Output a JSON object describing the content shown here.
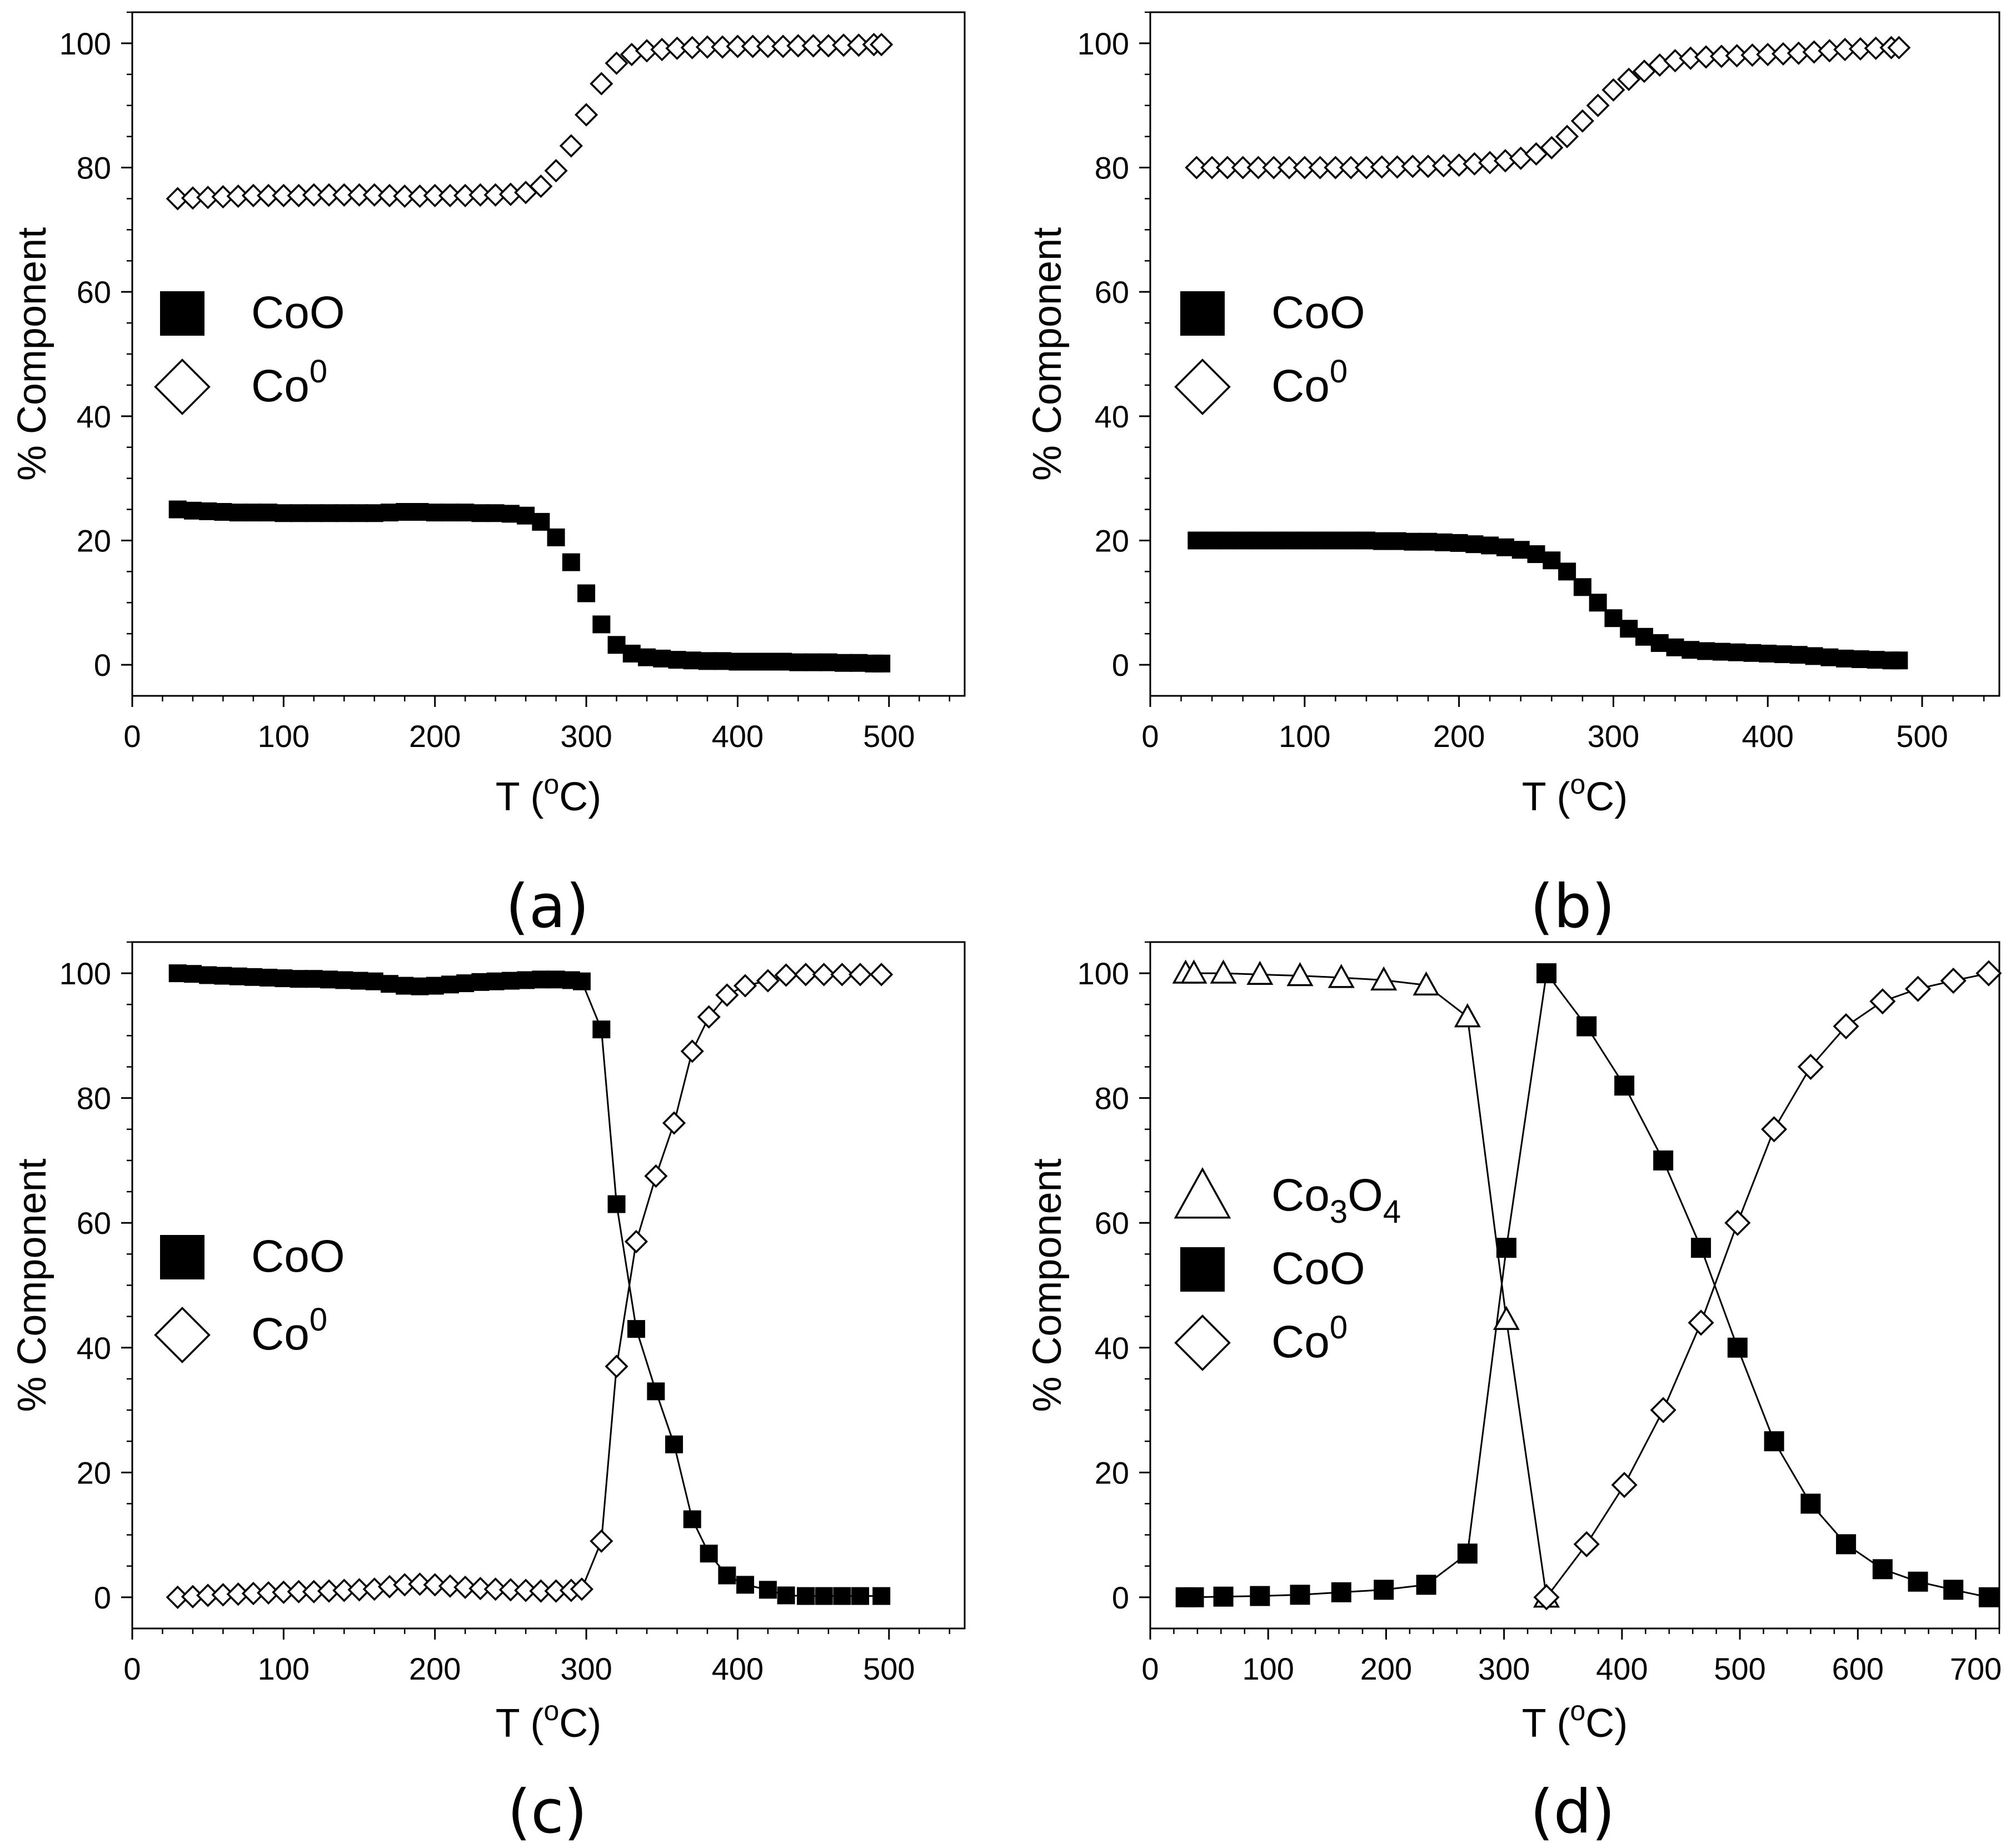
{
  "chart_data": [
    {
      "id": "a",
      "type": "scatter",
      "caption": "(a)",
      "xlabel": "T (°C)",
      "xlabel_parts": {
        "pre": "T (",
        "sup": "o",
        "post": "C)"
      },
      "ylabel": "% Component",
      "xlim": [
        0,
        550
      ],
      "ylim": [
        -5,
        105
      ],
      "xticks": [
        0,
        100,
        200,
        300,
        400,
        500
      ],
      "yticks": [
        0,
        20,
        40,
        60,
        80,
        100
      ],
      "legend": [
        "CoO",
        "Co0"
      ],
      "series": [
        {
          "name": "CoO",
          "marker": "square-filled",
          "line": false,
          "x": [
            30,
            40,
            50,
            60,
            70,
            80,
            90,
            100,
            110,
            120,
            130,
            140,
            150,
            160,
            170,
            180,
            190,
            200,
            210,
            220,
            230,
            240,
            250,
            260,
            270,
            280,
            290,
            300,
            310,
            320,
            330,
            340,
            350,
            360,
            370,
            380,
            390,
            400,
            410,
            420,
            430,
            440,
            450,
            460,
            470,
            480,
            490,
            495
          ],
          "y": [
            25,
            24.8,
            24.7,
            24.6,
            24.5,
            24.5,
            24.5,
            24.4,
            24.4,
            24.4,
            24.4,
            24.4,
            24.4,
            24.4,
            24.5,
            24.6,
            24.6,
            24.5,
            24.5,
            24.5,
            24.4,
            24.4,
            24.3,
            24.0,
            23.0,
            20.5,
            16.5,
            11.5,
            6.5,
            3.2,
            1.8,
            1.2,
            1.0,
            0.8,
            0.7,
            0.6,
            0.6,
            0.5,
            0.5,
            0.5,
            0.5,
            0.4,
            0.4,
            0.4,
            0.3,
            0.3,
            0.2,
            0.2
          ]
        },
        {
          "name": "Co0",
          "marker": "diamond-open",
          "line": false,
          "x": [
            30,
            40,
            50,
            60,
            70,
            80,
            90,
            100,
            110,
            120,
            130,
            140,
            150,
            160,
            170,
            180,
            190,
            200,
            210,
            220,
            230,
            240,
            250,
            260,
            270,
            280,
            290,
            300,
            310,
            320,
            330,
            340,
            350,
            360,
            370,
            380,
            390,
            400,
            410,
            420,
            430,
            440,
            450,
            460,
            470,
            480,
            490,
            495
          ],
          "y": [
            75,
            75.1,
            75.2,
            75.3,
            75.4,
            75.5,
            75.5,
            75.5,
            75.5,
            75.6,
            75.6,
            75.6,
            75.6,
            75.6,
            75.5,
            75.4,
            75.4,
            75.5,
            75.5,
            75.5,
            75.6,
            75.6,
            75.7,
            76.0,
            77.0,
            79.5,
            83.5,
            88.5,
            93.5,
            96.8,
            98.2,
            98.8,
            99.0,
            99.2,
            99.3,
            99.4,
            99.4,
            99.5,
            99.5,
            99.5,
            99.5,
            99.6,
            99.6,
            99.6,
            99.7,
            99.7,
            99.8,
            99.8
          ]
        }
      ]
    },
    {
      "id": "b",
      "type": "scatter",
      "caption": "(b)",
      "xlabel": "T (°C)",
      "xlabel_parts": {
        "pre": "T (",
        "sup": "o",
        "post": "C)"
      },
      "ylabel": "% Component",
      "xlim": [
        0,
        550
      ],
      "ylim": [
        -5,
        105
      ],
      "xticks": [
        0,
        100,
        200,
        300,
        400,
        500
      ],
      "yticks": [
        0,
        20,
        40,
        60,
        80,
        100
      ],
      "legend": [
        "CoO",
        "Co0"
      ],
      "series": [
        {
          "name": "CoO",
          "marker": "square-filled",
          "line": false,
          "x": [
            30,
            40,
            50,
            60,
            70,
            80,
            90,
            100,
            110,
            120,
            130,
            140,
            150,
            160,
            170,
            180,
            190,
            200,
            210,
            220,
            230,
            240,
            250,
            260,
            270,
            280,
            290,
            300,
            310,
            320,
            330,
            340,
            350,
            360,
            370,
            380,
            390,
            400,
            410,
            420,
            430,
            440,
            450,
            460,
            470,
            480,
            485
          ],
          "y": [
            20,
            20,
            20,
            20,
            20,
            20,
            20,
            20,
            20,
            20,
            20,
            20,
            19.9,
            19.9,
            19.8,
            19.8,
            19.7,
            19.6,
            19.4,
            19.2,
            18.9,
            18.5,
            17.8,
            16.8,
            15.0,
            12.5,
            10.0,
            7.5,
            5.8,
            4.5,
            3.5,
            2.8,
            2.4,
            2.2,
            2.1,
            2.0,
            1.9,
            1.8,
            1.7,
            1.6,
            1.4,
            1.2,
            1.0,
            0.9,
            0.8,
            0.7,
            0.7
          ]
        },
        {
          "name": "Co0",
          "marker": "diamond-open",
          "line": false,
          "x": [
            30,
            40,
            50,
            60,
            70,
            80,
            90,
            100,
            110,
            120,
            130,
            140,
            150,
            160,
            170,
            180,
            190,
            200,
            210,
            220,
            230,
            240,
            250,
            260,
            270,
            280,
            290,
            300,
            310,
            320,
            330,
            340,
            350,
            360,
            370,
            380,
            390,
            400,
            410,
            420,
            430,
            440,
            450,
            460,
            470,
            480,
            485
          ],
          "y": [
            80,
            80,
            80,
            80,
            80,
            80,
            80,
            80,
            80,
            80,
            80,
            80,
            80.1,
            80.1,
            80.2,
            80.2,
            80.3,
            80.4,
            80.6,
            80.8,
            81.1,
            81.5,
            82.2,
            83.2,
            85.0,
            87.5,
            90.0,
            92.5,
            94.2,
            95.5,
            96.5,
            97.2,
            97.6,
            97.8,
            97.9,
            98.0,
            98.1,
            98.2,
            98.3,
            98.4,
            98.6,
            98.8,
            99.0,
            99.1,
            99.2,
            99.3,
            99.3
          ]
        }
      ]
    },
    {
      "id": "c",
      "type": "line",
      "caption": "(c)",
      "xlabel": "T (°C)",
      "xlabel_parts": {
        "pre": "T (",
        "sup": "o",
        "post": "C)"
      },
      "ylabel": "% Component",
      "xlim": [
        0,
        550
      ],
      "ylim": [
        -5,
        105
      ],
      "xticks": [
        0,
        100,
        200,
        300,
        400,
        500
      ],
      "yticks": [
        0,
        20,
        40,
        60,
        80,
        100
      ],
      "legend": [
        "CoO",
        "Co0"
      ],
      "series": [
        {
          "name": "CoO",
          "marker": "square-filled",
          "line": true,
          "x": [
            30,
            40,
            50,
            60,
            70,
            80,
            90,
            100,
            110,
            120,
            130,
            140,
            150,
            160,
            170,
            180,
            190,
            200,
            210,
            220,
            230,
            240,
            250,
            260,
            270,
            280,
            290,
            297,
            310,
            320,
            333,
            346,
            358,
            370,
            381,
            393,
            405,
            420,
            432,
            445,
            457,
            469,
            481,
            495
          ],
          "y": [
            100,
            99.9,
            99.7,
            99.6,
            99.5,
            99.4,
            99.3,
            99.2,
            99.1,
            99.1,
            99.0,
            98.9,
            98.8,
            98.7,
            98.3,
            98.0,
            97.9,
            98.0,
            98.2,
            98.4,
            98.6,
            98.7,
            98.8,
            98.9,
            99.0,
            99.0,
            98.9,
            98.7,
            91,
            63,
            43,
            33,
            24.5,
            12.5,
            7,
            3.5,
            2,
            1.2,
            0.3,
            0.2,
            0.2,
            0.2,
            0.2,
            0.2
          ]
        },
        {
          "name": "Co0",
          "marker": "diamond-open",
          "line": true,
          "x": [
            30,
            40,
            50,
            60,
            70,
            80,
            90,
            100,
            110,
            120,
            130,
            140,
            150,
            160,
            170,
            180,
            190,
            200,
            210,
            220,
            230,
            240,
            250,
            260,
            270,
            280,
            290,
            297,
            310,
            320,
            333,
            346,
            358,
            370,
            381,
            393,
            405,
            420,
            432,
            445,
            457,
            469,
            481,
            495
          ],
          "y": [
            0,
            0.1,
            0.3,
            0.4,
            0.5,
            0.6,
            0.7,
            0.8,
            0.9,
            0.9,
            1.0,
            1.1,
            1.2,
            1.3,
            1.7,
            2.0,
            2.1,
            2.0,
            1.8,
            1.6,
            1.4,
            1.3,
            1.2,
            1.1,
            1.0,
            1.0,
            1.1,
            1.3,
            9,
            37,
            57,
            67.5,
            76,
            87.5,
            93,
            96.5,
            98,
            98.8,
            99.7,
            99.8,
            99.8,
            99.8,
            99.8,
            99.8
          ]
        }
      ]
    },
    {
      "id": "d",
      "type": "line",
      "caption": "(d)",
      "xlabel": "T (°C)",
      "xlabel_parts": {
        "pre": "T (",
        "sup": "o",
        "post": "C)"
      },
      "ylabel": "% Component",
      "xlim": [
        0,
        720
      ],
      "ylim": [
        -5,
        105
      ],
      "xticks": [
        0,
        100,
        200,
        300,
        400,
        500,
        600,
        700
      ],
      "yticks": [
        0,
        20,
        40,
        60,
        80,
        100
      ],
      "legend": [
        "Co3O4",
        "CoO",
        "Co0"
      ],
      "series": [
        {
          "name": "Co3O4",
          "marker": "triangle-open",
          "line": true,
          "x": [
            30,
            37,
            62,
            93,
            127,
            162,
            198,
            234,
            269,
            302,
            336
          ],
          "y": [
            100,
            100,
            100,
            99.8,
            99.6,
            99.3,
            98.9,
            98.1,
            93,
            44.5,
            0
          ]
        },
        {
          "name": "CoO",
          "marker": "square-filled",
          "line": true,
          "x": [
            30,
            37,
            62,
            93,
            127,
            162,
            198,
            234,
            269,
            302,
            336,
            370,
            402,
            435,
            467,
            498,
            529,
            560,
            590,
            621,
            651,
            681,
            711
          ],
          "y": [
            0,
            0,
            0.1,
            0.2,
            0.4,
            0.8,
            1.2,
            2,
            7,
            56,
            100,
            91.5,
            82,
            70,
            56,
            40,
            25,
            15,
            8.5,
            4.5,
            2.5,
            1.2,
            0
          ]
        },
        {
          "name": "Co0",
          "marker": "diamond-open",
          "line": true,
          "x": [
            336,
            370,
            402,
            435,
            467,
            498,
            529,
            560,
            590,
            621,
            651,
            681,
            711
          ],
          "y": [
            0,
            8.5,
            18,
            30,
            44,
            60,
            75,
            85,
            91.5,
            95.5,
            97.5,
            98.8,
            100
          ]
        }
      ]
    }
  ]
}
